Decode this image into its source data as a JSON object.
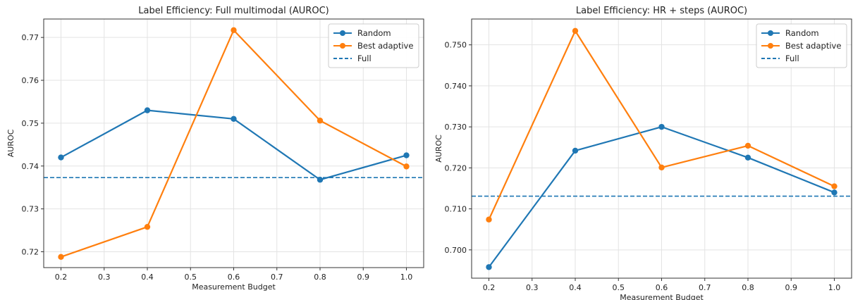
{
  "chart_data": [
    {
      "type": "line",
      "title": "Label Efficiency: Full multimodal (AUROC)",
      "xlabel": "Measurement Budget",
      "ylabel": "AUROC",
      "x": [
        0.2,
        0.4,
        0.6,
        0.8,
        1.0
      ],
      "xticks": [
        "0.2",
        "0.3",
        "0.4",
        "0.5",
        "0.6",
        "0.7",
        "0.8",
        "0.9",
        "1.0"
      ],
      "yticks": [
        "0.72",
        "0.73",
        "0.74",
        "0.75",
        "0.76",
        "0.77"
      ],
      "xlim": [
        0.16,
        1.04
      ],
      "ylim": [
        0.7163,
        0.7743
      ],
      "grid": true,
      "legend_position": "top-right",
      "series": [
        {
          "name": "Random",
          "color": "#1f77b4",
          "values": [
            0.742,
            0.753,
            0.751,
            0.7368,
            0.7425
          ]
        },
        {
          "name": "Best adaptive",
          "color": "#ff7f0e",
          "values": [
            0.7188,
            0.7258,
            0.7717,
            0.7506,
            0.7399
          ]
        }
      ],
      "reference_lines": [
        {
          "name": "Full",
          "color": "#1f77b4",
          "style": "dashed",
          "value": 0.7373
        }
      ]
    },
    {
      "type": "line",
      "title": "Label Efficiency: HR + steps (AUROC)",
      "xlabel": "Measurement Budget",
      "ylabel": "AUROC",
      "x": [
        0.2,
        0.4,
        0.6,
        0.8,
        1.0
      ],
      "xticks": [
        "0.2",
        "0.3",
        "0.4",
        "0.5",
        "0.6",
        "0.7",
        "0.8",
        "0.9",
        "1.0"
      ],
      "yticks": [
        "0.700",
        "0.710",
        "0.720",
        "0.730",
        "0.740",
        "0.750"
      ],
      "xlim": [
        0.16,
        1.04
      ],
      "ylim": [
        0.6931,
        0.7563
      ],
      "grid": true,
      "legend_position": "top-right",
      "series": [
        {
          "name": "Random",
          "color": "#1f77b4",
          "values": [
            0.6958,
            0.7242,
            0.73,
            0.7225,
            0.714
          ]
        },
        {
          "name": "Best adaptive",
          "color": "#ff7f0e",
          "values": [
            0.7074,
            0.7534,
            0.7201,
            0.7254,
            0.7155
          ]
        }
      ],
      "reference_lines": [
        {
          "name": "Full",
          "color": "#1f77b4",
          "style": "dashed",
          "value": 0.7131
        }
      ]
    }
  ]
}
